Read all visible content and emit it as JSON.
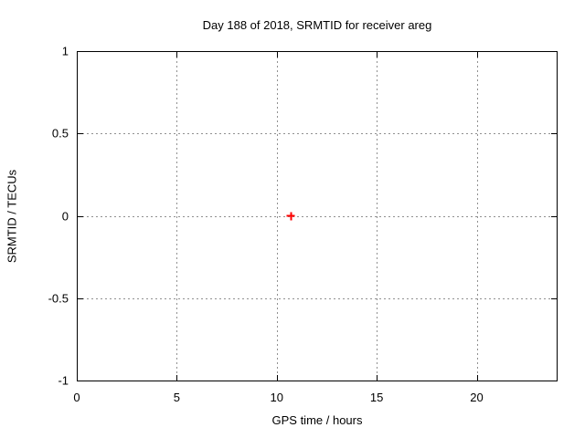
{
  "colors": {
    "marker": "#ff0000",
    "grid": "#909090",
    "axis": "#000000",
    "background": "#ffffff"
  },
  "chart_data": {
    "type": "scatter",
    "title": "Day 188 of 2018, SRMTID for receiver areg",
    "xlabel": "GPS time / hours",
    "ylabel": "SRMTID / TECUs",
    "xlim": [
      0,
      24
    ],
    "ylim": [
      -1,
      1
    ],
    "xticks": {
      "values": [
        0,
        5,
        10,
        15,
        20
      ],
      "labels": [
        "0",
        "5",
        "10",
        "15",
        "20"
      ]
    },
    "yticks": {
      "values": [
        -1,
        -0.5,
        0,
        0.5,
        1
      ],
      "labels": [
        "-1",
        "-0.5",
        "0",
        "0.5",
        "1"
      ]
    },
    "grid": "dotted, at every major tick, mirrored inward ticks on all four borders",
    "legend": "none",
    "series": [
      {
        "name": "SRMTID",
        "marker": "plus",
        "color": "#ff0000",
        "points": [
          {
            "x": 10.7,
            "y": 0
          }
        ]
      }
    ]
  }
}
